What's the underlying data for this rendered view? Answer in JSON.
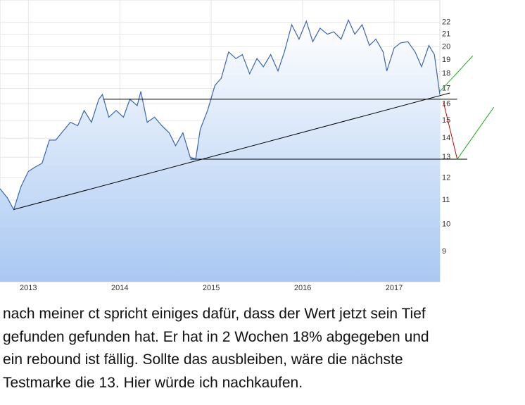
{
  "chart_data": {
    "type": "area",
    "x": [
      2012.69,
      2012.77,
      2012.84,
      2012.92,
      2013.0,
      2013.07,
      2013.15,
      2013.23,
      2013.3,
      2013.38,
      2013.46,
      2013.54,
      2013.61,
      2013.69,
      2013.77,
      2013.81,
      2013.88,
      2013.96,
      2014.04,
      2014.11,
      2014.19,
      2014.23,
      2014.3,
      2014.38,
      2014.46,
      2014.54,
      2014.61,
      2014.69,
      2014.77,
      2014.83,
      2014.88,
      2014.96,
      2015.04,
      2015.11,
      2015.19,
      2015.27,
      2015.34,
      2015.42,
      2015.5,
      2015.57,
      2015.65,
      2015.73,
      2015.8,
      2015.88,
      2015.96,
      2016.04,
      2016.11,
      2016.19,
      2016.27,
      2016.34,
      2016.42,
      2016.5,
      2016.57,
      2016.65,
      2016.73,
      2016.8,
      2016.88,
      2016.92,
      2017.0,
      2017.07,
      2017.15,
      2017.23,
      2017.3,
      2017.38,
      2017.44,
      2017.5
    ],
    "series": [
      {
        "color": "#3a64b4",
        "values": [
          11.5,
          11.1,
          10.6,
          11.6,
          12.3,
          12.5,
          12.7,
          13.9,
          13.9,
          14.4,
          14.9,
          14.7,
          15.6,
          14.9,
          16.3,
          16.6,
          15.2,
          15.6,
          15.2,
          16.3,
          15.9,
          16.8,
          14.9,
          15.2,
          14.7,
          14.3,
          13.6,
          14.3,
          13.0,
          12.9,
          14.5,
          15.6,
          17.2,
          17.7,
          19.6,
          19.1,
          19.4,
          18.0,
          19.1,
          18.5,
          19.4,
          18.2,
          19.6,
          21.8,
          20.6,
          22.1,
          20.4,
          21.5,
          21.0,
          21.2,
          20.6,
          22.2,
          21.0,
          21.8,
          20.1,
          20.6,
          19.6,
          18.2,
          19.9,
          20.3,
          20.4,
          19.6,
          18.5,
          20.1,
          19.4,
          16.6
        ]
      }
    ],
    "annotations": [
      {
        "color": "#000000",
        "x": [
          2013.82,
          2017.69
        ],
        "y": [
          16.3,
          16.3
        ]
      },
      {
        "color": "#000000",
        "x": [
          2014.77,
          2017.8
        ],
        "y": [
          12.9,
          12.9
        ]
      },
      {
        "color": "#000000",
        "x": [
          2012.84,
          2017.61
        ],
        "y": [
          10.6,
          16.7
        ]
      },
      {
        "color": "#cc0000",
        "x": [
          2017.54,
          2017.69
        ],
        "y": [
          16.1,
          12.9
        ]
      },
      {
        "color": "#22aa22",
        "x": [
          2017.5,
          2017.86
        ],
        "y": [
          16.8,
          19.3
        ]
      },
      {
        "color": "#22aa22",
        "x": [
          2017.69,
          2018.09
        ],
        "y": [
          12.9,
          15.8
        ]
      }
    ],
    "xlim": [
      2012.69,
      2017.5
    ],
    "xticks": [
      2013,
      2014,
      2015,
      2016,
      2017
    ],
    "ylim": [
      8,
      24
    ],
    "yticks": [
      9,
      10,
      11,
      12,
      13,
      14,
      15,
      16,
      17,
      18,
      19,
      20,
      21,
      22
    ],
    "ylog": true,
    "grid": true,
    "text": [
      "nach meiner ct spricht einiges dafür, dass der Wert jetzt sein Tief",
      "gefunden gefunden hat. Er hat in 2 Wochen 18% abgegeben und",
      "ein rebound ist fällig. Sollte das ausbleiben, wäre die nächste",
      "Testmarke die 13. Hier würde ich nachkaufen."
    ]
  }
}
